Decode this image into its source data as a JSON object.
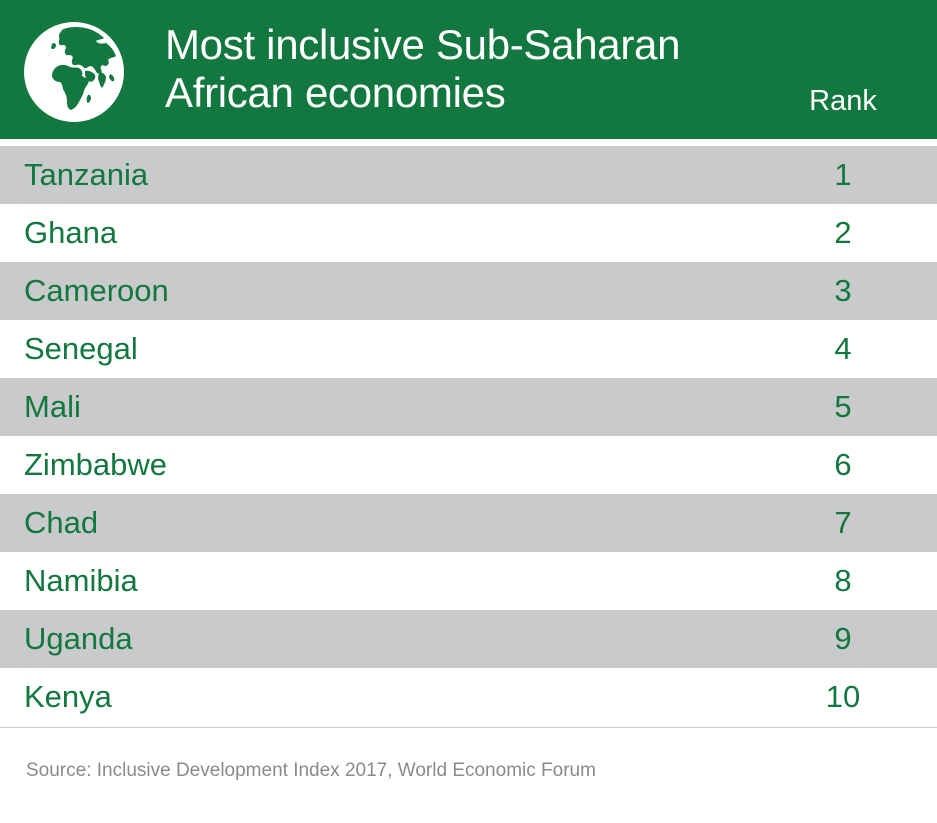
{
  "header": {
    "title_line1": "Most inclusive Sub-Saharan",
    "title_line2": "African economies",
    "rank_label": "Rank"
  },
  "colors": {
    "header_bg": "#13783f",
    "header_text": "#ffffff",
    "row_shade": "#c9cacc",
    "row_text": "#13783f",
    "source_text": "#8a8a8a"
  },
  "chart_data": {
    "type": "table",
    "title": "Most inclusive Sub-Saharan African economies",
    "columns": [
      "",
      "Rank"
    ],
    "rows": [
      {
        "country": "Tanzania",
        "rank": "1"
      },
      {
        "country": "Ghana",
        "rank": "2"
      },
      {
        "country": "Cameroon",
        "rank": "3"
      },
      {
        "country": "Senegal",
        "rank": "4"
      },
      {
        "country": "Mali",
        "rank": "5"
      },
      {
        "country": "Zimbabwe",
        "rank": "6"
      },
      {
        "country": "Chad",
        "rank": "7"
      },
      {
        "country": "Namibia",
        "rank": "8"
      },
      {
        "country": "Uganda",
        "rank": "9"
      },
      {
        "country": "Kenya",
        "rank": "10"
      }
    ]
  },
  "source": "Source: Inclusive Development Index 2017, World Economic Forum"
}
